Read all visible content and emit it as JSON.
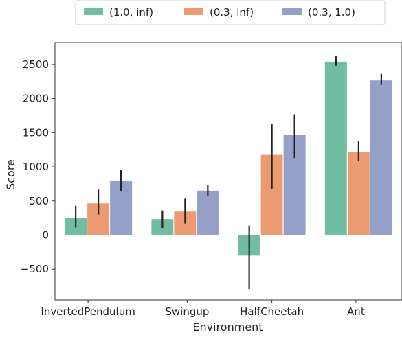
{
  "chart_data": {
    "type": "bar",
    "xlabel": "Environment",
    "ylabel": "Score",
    "categories": [
      "InvertedPendulum",
      "Swingup",
      "HalfCheetah",
      "Ant"
    ],
    "ylim": [
      -950,
      2820
    ],
    "yticks": [
      -500,
      0,
      500,
      1000,
      1500,
      2000,
      2500
    ],
    "ytick_labels": [
      "−500",
      "0",
      "500",
      "1000",
      "1500",
      "2000",
      "2500"
    ],
    "zero_line": "dashed",
    "grid": false,
    "legend_position": "top-center, outside plot",
    "series": [
      {
        "name": "(1.0, inf)",
        "color": "#72bda2",
        "values": [
          255,
          240,
          -305,
          2545
        ],
        "error_low": [
          110,
          105,
          -790,
          2480
        ],
        "error_high": [
          430,
          360,
          140,
          2630
        ]
      },
      {
        "name": "(0.3, inf)",
        "color": "#eb9a72",
        "values": [
          470,
          350,
          1180,
          1220
        ],
        "error_low": [
          300,
          170,
          680,
          1080
        ],
        "error_high": [
          665,
          535,
          1630,
          1380
        ]
      },
      {
        "name": "(0.3, 1.0)",
        "color": "#95a0c9",
        "values": [
          805,
          655,
          1470,
          2270
        ],
        "error_low": [
          640,
          580,
          1130,
          2200
        ],
        "error_high": [
          960,
          735,
          1770,
          2360
        ]
      }
    ]
  }
}
